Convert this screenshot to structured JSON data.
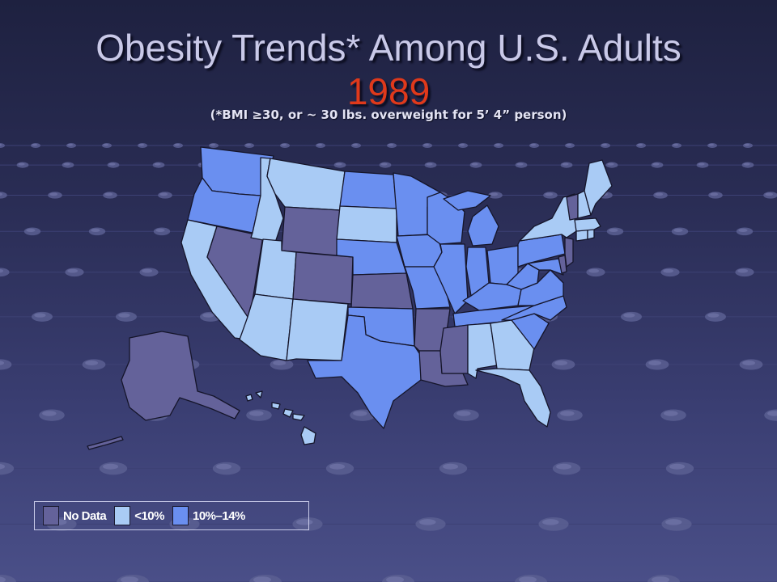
{
  "slide": {
    "title": "Obesity Trends* Among U.S. Adults",
    "year": "1989",
    "subtitle": "(*BMI ≥30, or ~ 30 lbs. overweight for 5’ 4” person)"
  },
  "legend": {
    "items": [
      {
        "key": "nodata",
        "label": "No Data",
        "color": "#64629a"
      },
      {
        "key": "lt10",
        "label": "<10%",
        "color": "#a9cbf5"
      },
      {
        "key": "10to14",
        "label": "10%–14%",
        "color": "#6a8ff0"
      }
    ]
  },
  "colors": {
    "nodata": "#64629a",
    "lt10": "#a9cbf5",
    "10to14": "#6a8ff0",
    "title": "#c9c9e8",
    "year": "#e0391b",
    "background_top": "#1e2140",
    "background_bottom": "#4a4f88"
  },
  "map": {
    "categories": {
      "WA": "10to14",
      "OR": "10to14",
      "CA": "lt10",
      "NV": "nodata",
      "ID": "lt10",
      "MT": "lt10",
      "WY": "nodata",
      "UT": "lt10",
      "AZ": "lt10",
      "CO": "nodata",
      "NM": "lt10",
      "ND": "10to14",
      "SD": "lt10",
      "NE": "10to14",
      "KS": "nodata",
      "OK": "10to14",
      "TX": "10to14",
      "MN": "10to14",
      "IA": "10to14",
      "MO": "10to14",
      "AR": "nodata",
      "LA": "nodata",
      "WI": "10to14",
      "IL": "10to14",
      "MS": "nodata",
      "MI": "10to14",
      "IN": "10to14",
      "KY": "10to14",
      "TN": "10to14",
      "AL": "lt10",
      "OH": "10to14",
      "WV": "10to14",
      "GA": "lt10",
      "FL": "lt10",
      "SC": "10to14",
      "NC": "10to14",
      "VA": "10to14",
      "MD": "10to14",
      "DE": "nodata",
      "NJ": "nodata",
      "PA": "10to14",
      "NY": "lt10",
      "CT": "lt10",
      "RI": "lt10",
      "MA": "lt10",
      "VT": "nodata",
      "NH": "lt10",
      "ME": "lt10",
      "AK": "nodata",
      "HI": "lt10"
    }
  }
}
